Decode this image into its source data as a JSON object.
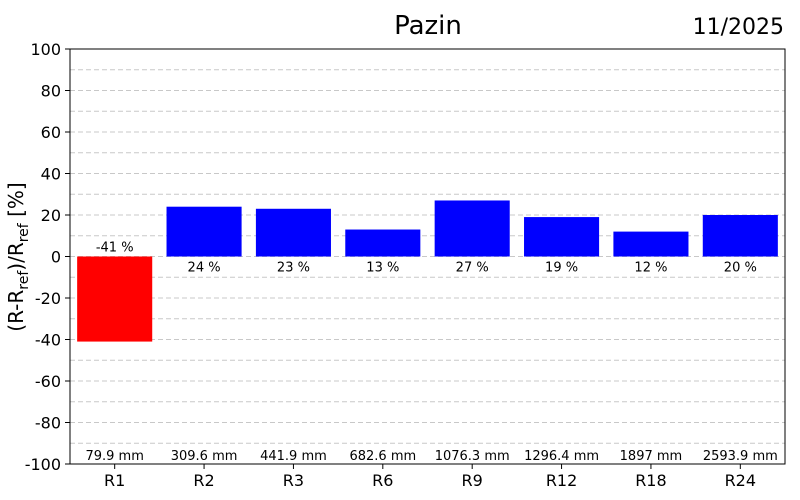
{
  "chart_data": {
    "type": "bar",
    "title": "Pazin",
    "date": "11/2025",
    "ylabel": {
      "base": "(R-R",
      "sub1": "ref",
      "mid": ")/R",
      "sub2": "ref",
      "tail": " [%]"
    },
    "ylim": [
      -100,
      100
    ],
    "yticks": [
      100,
      80,
      60,
      40,
      20,
      0,
      -20,
      -40,
      -60,
      -80,
      -100
    ],
    "ytick_labels": [
      "100",
      "80",
      "60",
      "40",
      "20",
      "0",
      "-20",
      "-40",
      "-60",
      "-80",
      "-100"
    ],
    "grid": true,
    "categories": [
      "R1",
      "R2",
      "R3",
      "R6",
      "R9",
      "R12",
      "R18",
      "R24"
    ],
    "values": [
      -41,
      24,
      23,
      13,
      27,
      19,
      12,
      20
    ],
    "value_labels": [
      "-41 %",
      "24 %",
      "23 %",
      "13 %",
      "27 %",
      "19 %",
      "12 %",
      "20 %"
    ],
    "amounts": [
      "79.9 mm",
      "309.6 mm",
      "441.9 mm",
      "682.6 mm",
      "1076.3 mm",
      "1296.4 mm",
      "1897 mm",
      "2593.9 mm"
    ],
    "colors": {
      "positive": "#0000ff",
      "negative": "#ff0000",
      "grid": "#c8c8c8"
    }
  }
}
